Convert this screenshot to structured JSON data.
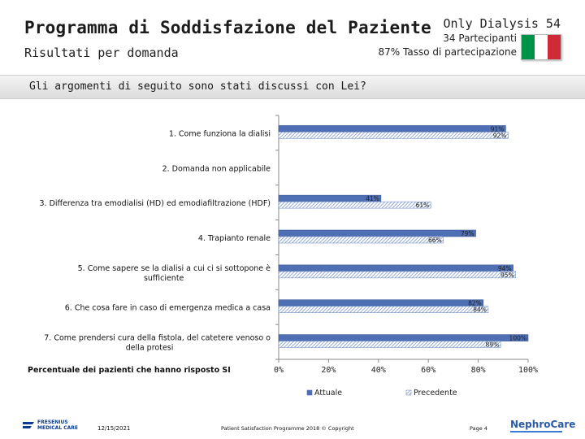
{
  "header": {
    "title": "Programma di Soddisfazione del Paziente",
    "subtitle": "Risultati per domanda",
    "clinic": "Only Dialysis 54",
    "participants": "34 Partecipanti",
    "rate": "87% Tasso di partecipazione"
  },
  "question_band": {
    "text": "Gli argomenti di seguito sono stati discussi con Lei?"
  },
  "chart_data": {
    "type": "bar",
    "orientation": "horizontal",
    "categories": [
      "1. Come funziona la dialisi",
      "2. Domanda non applicabile",
      "3. Differenza tra emodialisi (HD) ed emodiafiltrazione (HDF)",
      "4. Trapianto renale",
      "5. Come sapere se la dialisi a cui ci si sottopone è sufficiente",
      "6. Che cosa fare in caso di emergenza medica a casa",
      "7. Come prendersi cura della fistola, del catetere venoso o della protesi"
    ],
    "category_lines": [
      [
        "1. Come funziona la dialisi"
      ],
      [
        "2. Domanda non applicabile"
      ],
      [
        "3. Differenza tra emodialisi (HD) ed emodiafiltrazione (HDF)"
      ],
      [
        "4. Trapianto renale"
      ],
      [
        "5. Come sapere se la dialisi a cui ci si sottopone è",
        "sufficiente"
      ],
      [
        "6. Che cosa fare in caso di emergenza medica a casa"
      ],
      [
        "7. Come prendersi cura della fistola, del catetere venoso o",
        "della protesi"
      ]
    ],
    "series": [
      {
        "name": "Attuale",
        "values": [
          91,
          null,
          41,
          79,
          94,
          82,
          100
        ],
        "labels": [
          "91%",
          "",
          "41%",
          "79%",
          "94%",
          "82%",
          "100%"
        ],
        "color": "#4e6fb3"
      },
      {
        "name": "Precedente",
        "values": [
          92,
          null,
          61,
          66,
          95,
          84,
          89
        ],
        "labels": [
          "92%",
          "",
          "61%",
          "66%",
          "95%",
          "84%",
          "89%"
        ],
        "color": "#7b96c8"
      }
    ],
    "xlabel": "Percentuale dei pazienti che hanno risposto SI",
    "xlim": [
      0,
      100
    ],
    "ticks": [
      "0%",
      "20%",
      "40%",
      "60%",
      "80%",
      "100%"
    ],
    "tick_values": [
      0,
      20,
      40,
      60,
      80,
      100
    ],
    "legend": "bottom"
  },
  "footer": {
    "brand_left": [
      "FRESENIUS",
      "MEDICAL CARE"
    ],
    "date": "12/15/2021",
    "copyright": "Patient Satisfaction Programme 2018 © Copyright",
    "page": "Page 4",
    "brand_right": "NephroCare"
  },
  "colors": {
    "flag": [
      "#009246",
      "#ffffff",
      "#ce2b37"
    ],
    "bar_attuale": "#4e6fb3",
    "bar_precedente": "#7b96c8"
  }
}
